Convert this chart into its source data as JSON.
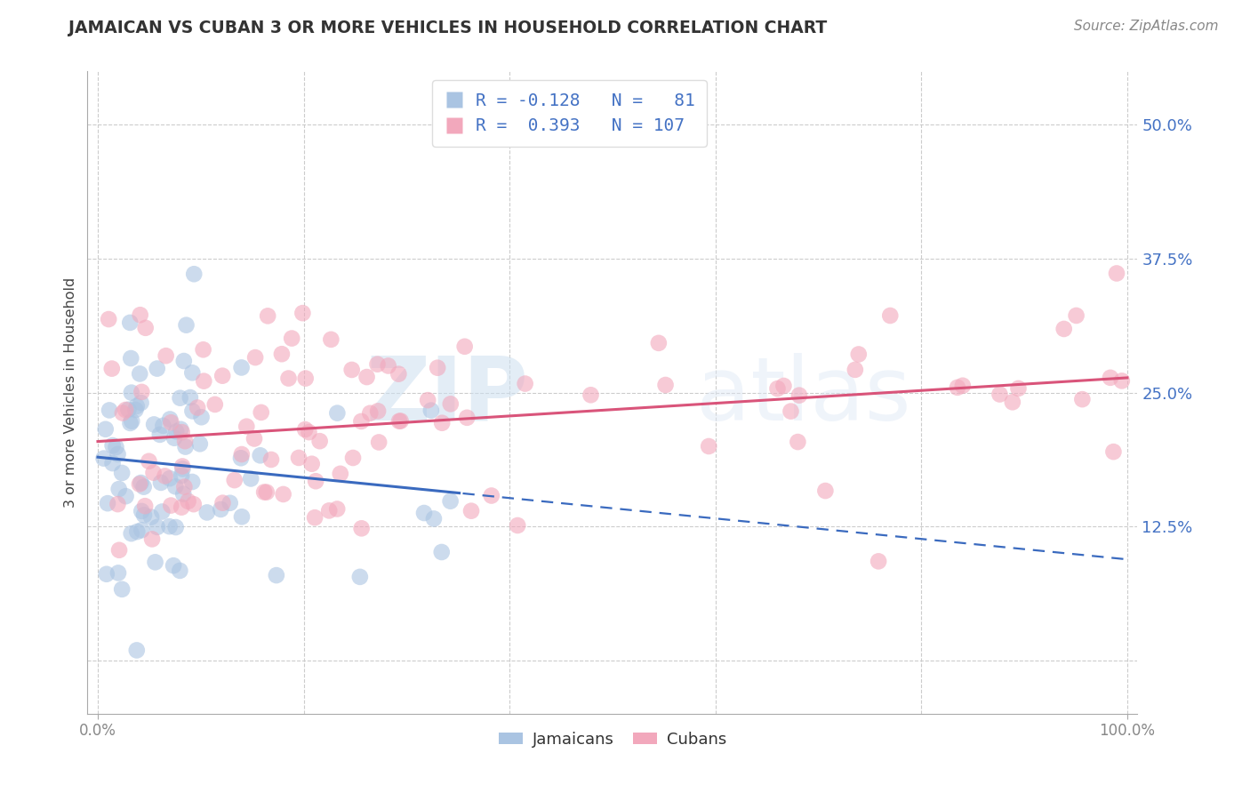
{
  "title": "JAMAICAN VS CUBAN 3 OR MORE VEHICLES IN HOUSEHOLD CORRELATION CHART",
  "source": "Source: ZipAtlas.com",
  "ylabel": "3 or more Vehicles in Household",
  "ytick_labels": [
    "",
    "12.5%",
    "25.0%",
    "37.5%",
    "50.0%"
  ],
  "ytick_values": [
    0.0,
    0.125,
    0.25,
    0.375,
    0.5
  ],
  "xlim": [
    -0.01,
    1.01
  ],
  "ylim": [
    -0.05,
    0.55
  ],
  "jamaican_color": "#aac4e2",
  "cuban_color": "#f2a8bc",
  "jamaican_line_color": "#3a6abf",
  "cuban_line_color": "#d9547a",
  "watermark_zip": "ZIP",
  "watermark_atlas": "atlas",
  "background_color": "#ffffff",
  "grid_color": "#cccccc",
  "legend_entry1": "R = -0.128   N =   81",
  "legend_entry2": "R =  0.393   N = 107",
  "bottom_legend1": "Jamaicans",
  "bottom_legend2": "Cubans"
}
